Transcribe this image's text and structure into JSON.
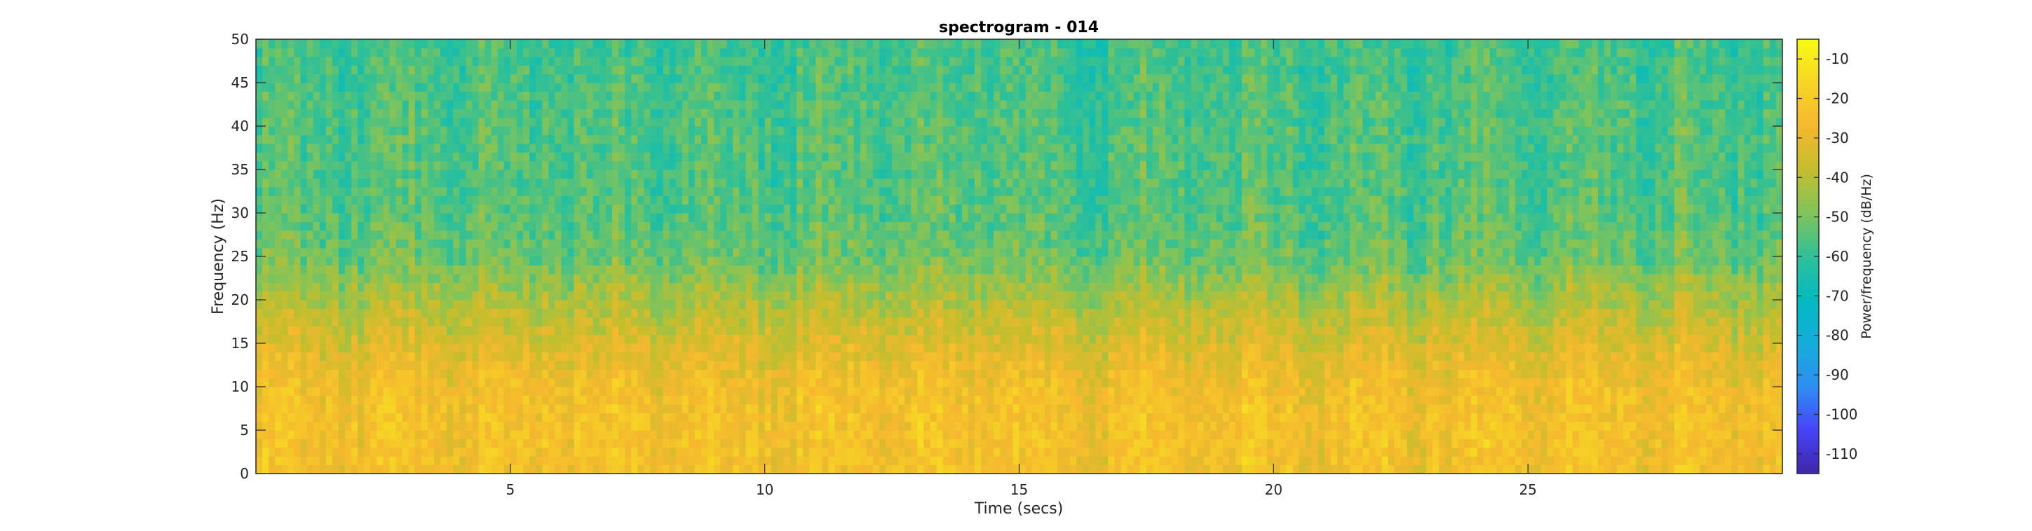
{
  "chart_data": {
    "type": "heatmap",
    "title": "spectrogram - 014",
    "xlabel": "Time (secs)",
    "ylabel": "Frequency (Hz)",
    "xlim": [
      0,
      30
    ],
    "ylim": [
      0,
      50
    ],
    "x_ticks": [
      5,
      10,
      15,
      20,
      25
    ],
    "y_ticks": [
      0,
      5,
      10,
      15,
      20,
      25,
      30,
      35,
      40,
      45,
      50
    ],
    "colorbar": {
      "label": "Power/frequency (dB/Hz)",
      "range": [
        -115,
        -5
      ],
      "ticks": [
        -10,
        -20,
        -30,
        -40,
        -50,
        -60,
        -70,
        -80,
        -90,
        -100,
        -110
      ],
      "colormap": [
        "#3e26a8",
        "#4743f8",
        "#2d8ff2",
        "#14adda",
        "#03bac1",
        "#2fc097",
        "#80c45a",
        "#c4be2d",
        "#f5b82e",
        "#f6d524",
        "#f9fb14"
      ]
    },
    "power_profile_by_frequency": {
      "frequency_hz": [
        0,
        5,
        10,
        15,
        20,
        25,
        30,
        35,
        40,
        45,
        50
      ],
      "mean_power_db": [
        -25,
        -24,
        -26,
        -33,
        -42,
        -52,
        -55,
        -56,
        -56,
        -57,
        -58
      ]
    },
    "grid": false,
    "colorbar_placement": "right"
  }
}
